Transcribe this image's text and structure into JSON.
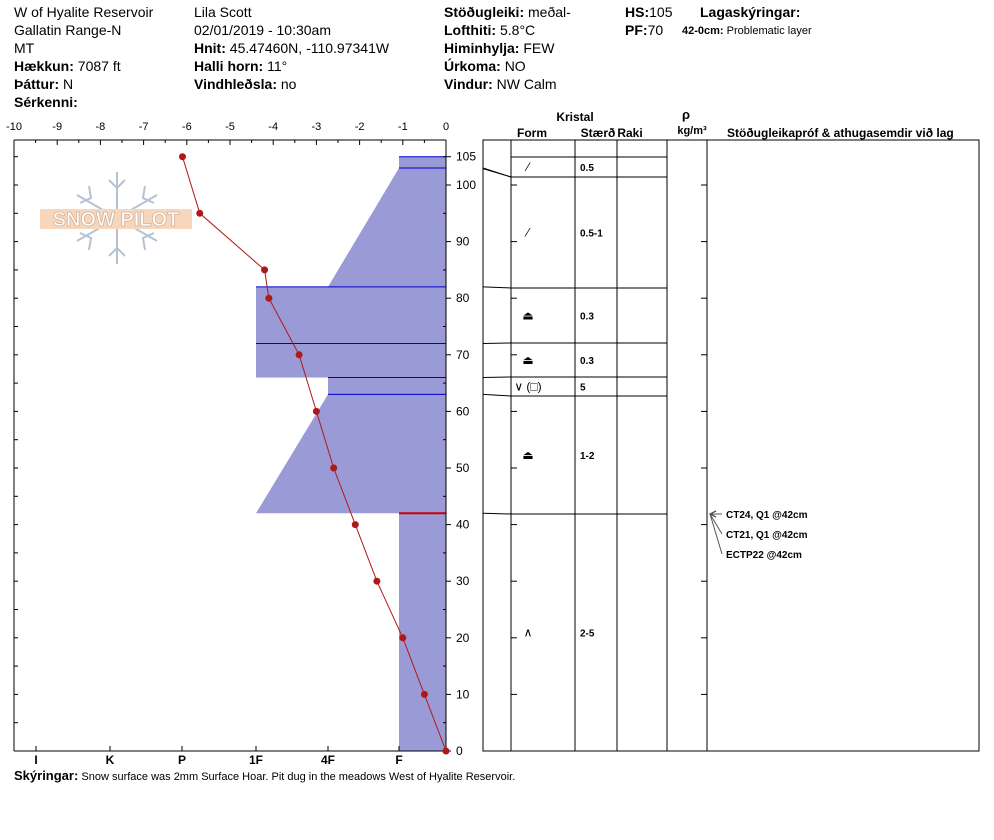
{
  "location": {
    "name": "W of Hyalite Reservoir",
    "range": "Gallatin Range-N",
    "state": "MT",
    "elevation_label": "Hækkun:",
    "elevation": "7087 ft",
    "aspect_label": "Þáttur:",
    "aspect": "N",
    "specifics_label": "Sérkenni:"
  },
  "observer": {
    "name": "Lila Scott",
    "datetime": "02/01/2019 - 10:30am",
    "coords_label": "Hnit:",
    "coords": "45.47460N, -110.97341W",
    "slope_label": "Halli horn:",
    "slope": "11°",
    "wind_loading_label": "Vindhleðsla:",
    "wind_loading": "no"
  },
  "conditions": {
    "stability_label": "Stöðugleiki:",
    "stability": "meðal-",
    "air_temp_label": "Lofthiti:",
    "air_temp": "5.8°C",
    "sky_label": "Himinhylja:",
    "sky": "FEW",
    "precip_label": "Úrkoma:",
    "precip": "NO",
    "wind_label": "Vindur:",
    "wind": "NW Calm"
  },
  "snowpack": {
    "hs_label": "HS:",
    "hs": "105",
    "pf_label": "PF:",
    "pf": "70",
    "layers_title": "Lagaskýringar:",
    "layer_note_range": "42-0cm:",
    "layer_note_text": "Problematic layer"
  },
  "table_headers": {
    "crystal": "Kristal",
    "form": "Form",
    "size": "Stærð",
    "moisture": "Raki",
    "rho": "ρ",
    "density_unit": "kg/m³",
    "tests": "Stöðugleikapróf & athugasemdir við lag"
  },
  "logo_text": "SNOW PILOT",
  "colors": {
    "hardness_fill": "#9a9ad6",
    "hardness_line": "#0000cc",
    "temp_line": "#b01818",
    "problem_layer": "#cc0000"
  },
  "notes": {
    "label": "Skýringar:",
    "text": "Snow surface was 2mm Surface Hoar. Pit dug in the meadows West of Hyalite Reservoir."
  },
  "chart_data": {
    "type": "area",
    "temp_axis": {
      "ticks": [
        -10,
        -9,
        -8,
        -7,
        -6,
        -5,
        -4,
        -3,
        -2,
        -1,
        0
      ],
      "range": [
        -10,
        0
      ]
    },
    "depth_axis": {
      "ticks": [
        0,
        10,
        20,
        30,
        40,
        50,
        60,
        70,
        80,
        90,
        100,
        105
      ],
      "range": [
        0,
        105
      ]
    },
    "hardness_axis": {
      "ticks": [
        "I",
        "K",
        "P",
        "1F",
        "4F",
        "F"
      ],
      "range": [
        "F",
        "I"
      ]
    },
    "temperature_profile": [
      {
        "depth": 105,
        "temp": -6.1
      },
      {
        "depth": 95,
        "temp": -5.7
      },
      {
        "depth": 85,
        "temp": -4.2
      },
      {
        "depth": 80,
        "temp": -4.1
      },
      {
        "depth": 70,
        "temp": -3.4
      },
      {
        "depth": 60,
        "temp": -3.0
      },
      {
        "depth": 50,
        "temp": -2.6
      },
      {
        "depth": 40,
        "temp": -2.1
      },
      {
        "depth": 30,
        "temp": -1.6
      },
      {
        "depth": 20,
        "temp": -1.0
      },
      {
        "depth": 10,
        "temp": -0.5
      },
      {
        "depth": 0,
        "temp": 0.0
      }
    ],
    "layers": [
      {
        "top": 105,
        "bottom": 103,
        "hardness_top": "F",
        "hardness_bottom": "F",
        "form": "⁄",
        "size": "0.5"
      },
      {
        "top": 103,
        "bottom": 82,
        "hardness_top": "F",
        "hardness_bottom": "1F-",
        "form": "⁄",
        "size": "0.5-1"
      },
      {
        "top": 82,
        "bottom": 72,
        "hardness_top": "1F+",
        "hardness_bottom": "1F+",
        "form": "⏏",
        "size": "0.3"
      },
      {
        "top": 72,
        "bottom": 66,
        "hardness_top": "1F+",
        "hardness_bottom": "1F+",
        "form": "⏏",
        "size": "0.3"
      },
      {
        "top": 66,
        "bottom": 63,
        "hardness_top": "4F-",
        "hardness_bottom": "4F-",
        "form": "∨ (□)",
        "size": "5"
      },
      {
        "top": 63,
        "bottom": 42,
        "hardness_top": "4F-",
        "hardness_bottom": "1F+",
        "form": "⏏",
        "size": "1-2"
      },
      {
        "top": 42,
        "bottom": 0,
        "hardness_top": "F",
        "hardness_bottom": "F",
        "form": "∧",
        "size": "2-5"
      }
    ],
    "tests": [
      {
        "depth": 42,
        "text": "CT24, Q1 @42cm"
      },
      {
        "depth": 42,
        "text": "CT21, Q1 @42cm"
      },
      {
        "depth": 42,
        "text": "ECTP22 @42cm"
      }
    ],
    "problem_layer_depth": 42
  }
}
